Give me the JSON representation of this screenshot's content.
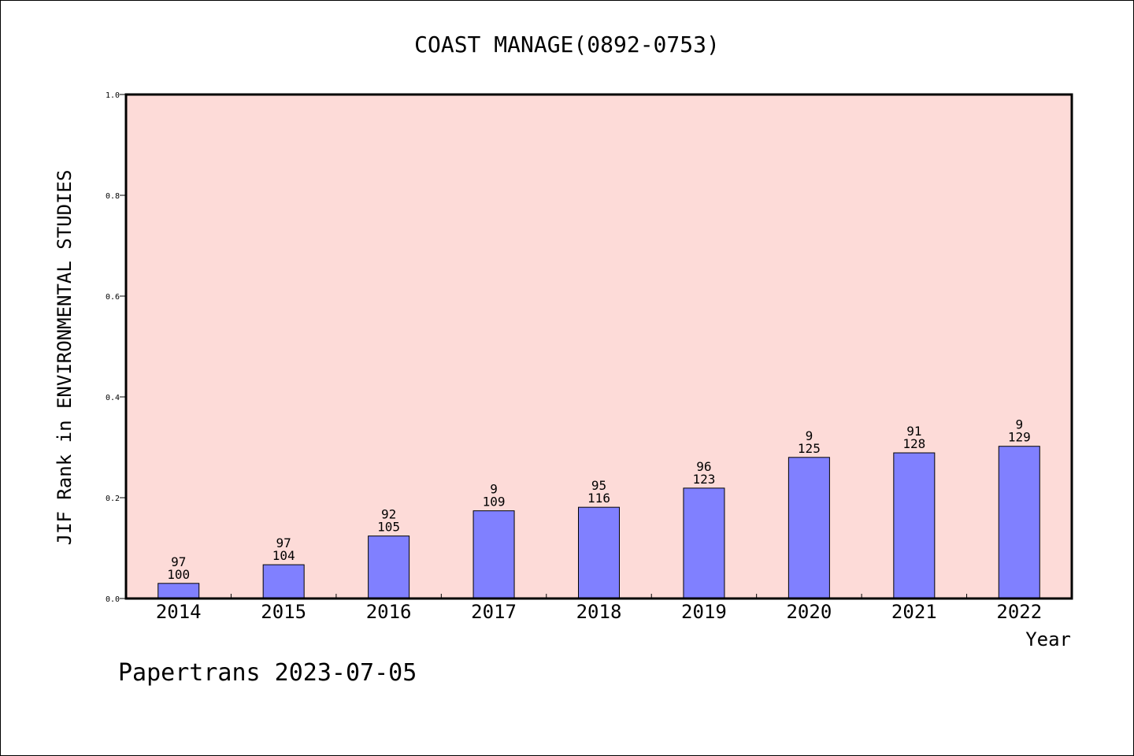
{
  "chart_data": {
    "type": "bar",
    "title": "COAST MANAGE(0892-0753)",
    "xlabel": "Year",
    "ylabel": "JIF Rank in ENVIRONMENTAL STUDIES",
    "ylim": [
      0,
      1.0
    ],
    "yticks": [
      "0.0",
      "0.2",
      "0.4",
      "0.6",
      "0.8",
      "1.0"
    ],
    "grid": false,
    "categories": [
      "2014",
      "2015",
      "2016",
      "2017",
      "2018",
      "2019",
      "2020",
      "2021",
      "2022"
    ],
    "values": [
      0.03,
      0.067,
      0.124,
      0.174,
      0.181,
      0.219,
      0.28,
      0.289,
      0.302
    ],
    "labels_top": [
      "97",
      "97",
      "92",
      "9",
      "95",
      "96",
      "9",
      "91",
      "9"
    ],
    "labels_bottom": [
      "100",
      "104",
      "105",
      "109",
      "116",
      "123",
      "125",
      "128",
      "129"
    ],
    "colors": {
      "bar": "#8080ff",
      "plot_background": "#fddbd8"
    }
  },
  "footer": "Papertrans 2023-07-05"
}
